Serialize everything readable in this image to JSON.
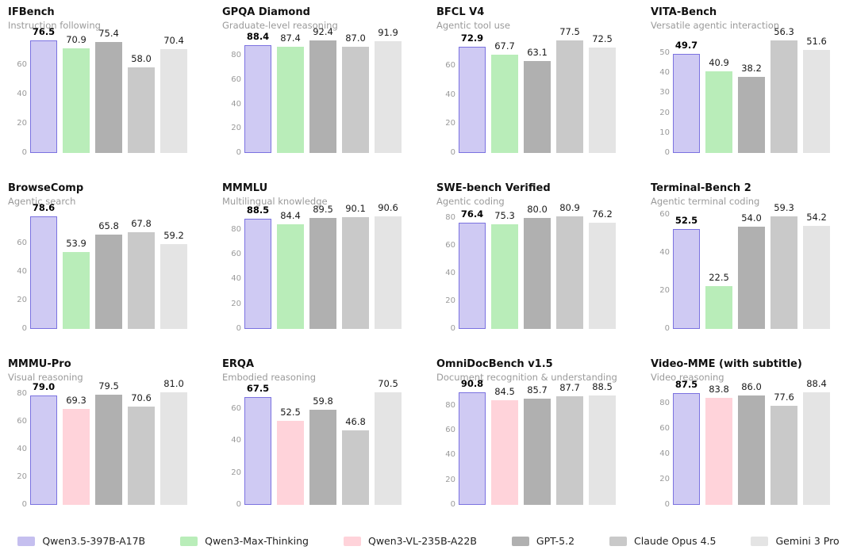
{
  "figure": {
    "background": "#ffffff"
  },
  "palette": {
    "Qwen3.5-397B-A17B": {
      "fill": "#cfcaf3",
      "border": "#7b72e0"
    },
    "Qwen3-Max-Thinking": {
      "fill": "#b9edb9",
      "border": null
    },
    "Qwen3-VL-235B-A22B": {
      "fill": "#ffd3da",
      "border": null
    },
    "GPT-5.2": {
      "fill": "#b0b0b0",
      "border": null
    },
    "Claude Opus 4.5": {
      "fill": "#c9c9c9",
      "border": null
    },
    "Gemini 3 Pro": {
      "fill": "#e4e4e4",
      "border": null
    }
  },
  "legend": {
    "items": [
      {
        "label": "Qwen3.5-397B-A17B",
        "color": "#c5bfef"
      },
      {
        "label": "Qwen3-Max-Thinking",
        "color": "#b9edb9"
      },
      {
        "label": "Qwen3-VL-235B-A22B",
        "color": "#ffd3da"
      },
      {
        "label": "GPT-5.2",
        "color": "#b0b0b0"
      },
      {
        "label": "Claude Opus 4.5",
        "color": "#c9c9c9"
      },
      {
        "label": "Gemini 3 Pro",
        "color": "#e4e4e4"
      }
    ]
  },
  "chart_data": [
    {
      "type": "bar",
      "title": "IFBench",
      "subtitle": "Instruction following",
      "models": [
        "Qwen3.5-397B-A17B",
        "Qwen3-Max-Thinking",
        "GPT-5.2",
        "Claude Opus 4.5",
        "Gemini 3 Pro"
      ],
      "values": [
        76.5,
        70.9,
        75.4,
        58.0,
        70.4
      ],
      "yticks": [
        0,
        20,
        40,
        60
      ],
      "ylim": [
        0,
        76.5
      ],
      "grid": false
    },
    {
      "type": "bar",
      "title": "GPQA Diamond",
      "subtitle": "Graduate-level reasoning",
      "models": [
        "Qwen3.5-397B-A17B",
        "Qwen3-Max-Thinking",
        "GPT-5.2",
        "Claude Opus 4.5",
        "Gemini 3 Pro"
      ],
      "values": [
        88.4,
        87.4,
        92.4,
        87.0,
        91.9
      ],
      "yticks": [
        0,
        20,
        40,
        60,
        80
      ],
      "ylim": [
        0,
        92.4
      ],
      "grid": false
    },
    {
      "type": "bar",
      "title": "BFCL V4",
      "subtitle": "Agentic tool use",
      "models": [
        "Qwen3.5-397B-A17B",
        "Qwen3-Max-Thinking",
        "GPT-5.2",
        "Claude Opus 4.5",
        "Gemini 3 Pro"
      ],
      "values": [
        72.9,
        67.7,
        63.1,
        77.5,
        72.5
      ],
      "yticks": [
        0,
        20,
        40,
        60
      ],
      "ylim": [
        0,
        77.5
      ],
      "grid": false
    },
    {
      "type": "bar",
      "title": "VITA-Bench",
      "subtitle": "Versatile agentic interaction",
      "models": [
        "Qwen3.5-397B-A17B",
        "Qwen3-Max-Thinking",
        "GPT-5.2",
        "Claude Opus 4.5",
        "Gemini 3 Pro"
      ],
      "values": [
        49.7,
        40.9,
        38.2,
        56.3,
        51.6
      ],
      "yticks": [
        0,
        10,
        20,
        30,
        40,
        50
      ],
      "ylim": [
        0,
        56.3
      ],
      "grid": false
    },
    {
      "type": "bar",
      "title": "BrowseComp",
      "subtitle": "Agentic search",
      "models": [
        "Qwen3.5-397B-A17B",
        "Qwen3-Max-Thinking",
        "GPT-5.2",
        "Claude Opus 4.5",
        "Gemini 3 Pro"
      ],
      "values": [
        78.6,
        53.9,
        65.8,
        67.8,
        59.2
      ],
      "yticks": [
        0,
        20,
        40,
        60
      ],
      "ylim": [
        0,
        78.6
      ],
      "grid": false
    },
    {
      "type": "bar",
      "title": "MMMLU",
      "subtitle": "Multilingual knowledge",
      "models": [
        "Qwen3.5-397B-A17B",
        "Qwen3-Max-Thinking",
        "GPT-5.2",
        "Claude Opus 4.5",
        "Gemini 3 Pro"
      ],
      "values": [
        88.5,
        84.4,
        89.5,
        90.1,
        90.6
      ],
      "yticks": [
        0,
        20,
        40,
        60,
        80
      ],
      "ylim": [
        0,
        90.6
      ],
      "grid": false
    },
    {
      "type": "bar",
      "title": "SWE-bench Verified",
      "subtitle": "Agentic coding",
      "models": [
        "Qwen3.5-397B-A17B",
        "Qwen3-Max-Thinking",
        "GPT-5.2",
        "Claude Opus 4.5",
        "Gemini 3 Pro"
      ],
      "values": [
        76.4,
        75.3,
        80.0,
        80.9,
        76.2
      ],
      "yticks": [
        0,
        20,
        40,
        60,
        80
      ],
      "ylim": [
        0,
        80.9
      ],
      "grid": false
    },
    {
      "type": "bar",
      "title": "Terminal-Bench 2",
      "subtitle": "Agentic terminal coding",
      "models": [
        "Qwen3.5-397B-A17B",
        "Qwen3-Max-Thinking",
        "GPT-5.2",
        "Claude Opus 4.5",
        "Gemini 3 Pro"
      ],
      "values": [
        52.5,
        22.5,
        54.0,
        59.3,
        54.2
      ],
      "yticks": [
        0,
        20,
        40,
        60
      ],
      "ylim": [
        0,
        59.3
      ],
      "grid": false
    },
    {
      "type": "bar",
      "title": "MMMU-Pro",
      "subtitle": "Visual reasoning",
      "models": [
        "Qwen3.5-397B-A17B",
        "Qwen3-VL-235B-A22B",
        "GPT-5.2",
        "Claude Opus 4.5",
        "Gemini 3 Pro"
      ],
      "values": [
        79.0,
        69.3,
        79.5,
        70.6,
        81.0
      ],
      "yticks": [
        0,
        20,
        40,
        60,
        80
      ],
      "ylim": [
        0,
        81.0
      ],
      "grid": false
    },
    {
      "type": "bar",
      "title": "ERQA",
      "subtitle": "Embodied reasoning",
      "models": [
        "Qwen3.5-397B-A17B",
        "Qwen3-VL-235B-A22B",
        "GPT-5.2",
        "Claude Opus 4.5",
        "Gemini 3 Pro"
      ],
      "values": [
        67.5,
        52.5,
        59.8,
        46.8,
        70.5
      ],
      "yticks": [
        0,
        20,
        40,
        60
      ],
      "ylim": [
        0,
        70.5
      ],
      "grid": false
    },
    {
      "type": "bar",
      "title": "OmniDocBench v1.5",
      "subtitle": "Document recognition & understanding",
      "models": [
        "Qwen3.5-397B-A17B",
        "Qwen3-VL-235B-A22B",
        "GPT-5.2",
        "Claude Opus 4.5",
        "Gemini 3 Pro"
      ],
      "values": [
        90.8,
        84.5,
        85.7,
        87.7,
        88.5
      ],
      "yticks": [
        0,
        20,
        40,
        60,
        80
      ],
      "ylim": [
        0,
        90.8
      ],
      "grid": false
    },
    {
      "type": "bar",
      "title": "Video-MME (with subtitle)",
      "subtitle": "Video reasoning",
      "models": [
        "Qwen3.5-397B-A17B",
        "Qwen3-VL-235B-A22B",
        "GPT-5.2",
        "Claude Opus 4.5",
        "Gemini 3 Pro"
      ],
      "values": [
        87.5,
        83.8,
        86.0,
        77.6,
        88.4
      ],
      "yticks": [
        0,
        20,
        40,
        60,
        80
      ],
      "ylim": [
        0,
        88.4
      ],
      "grid": false
    }
  ]
}
